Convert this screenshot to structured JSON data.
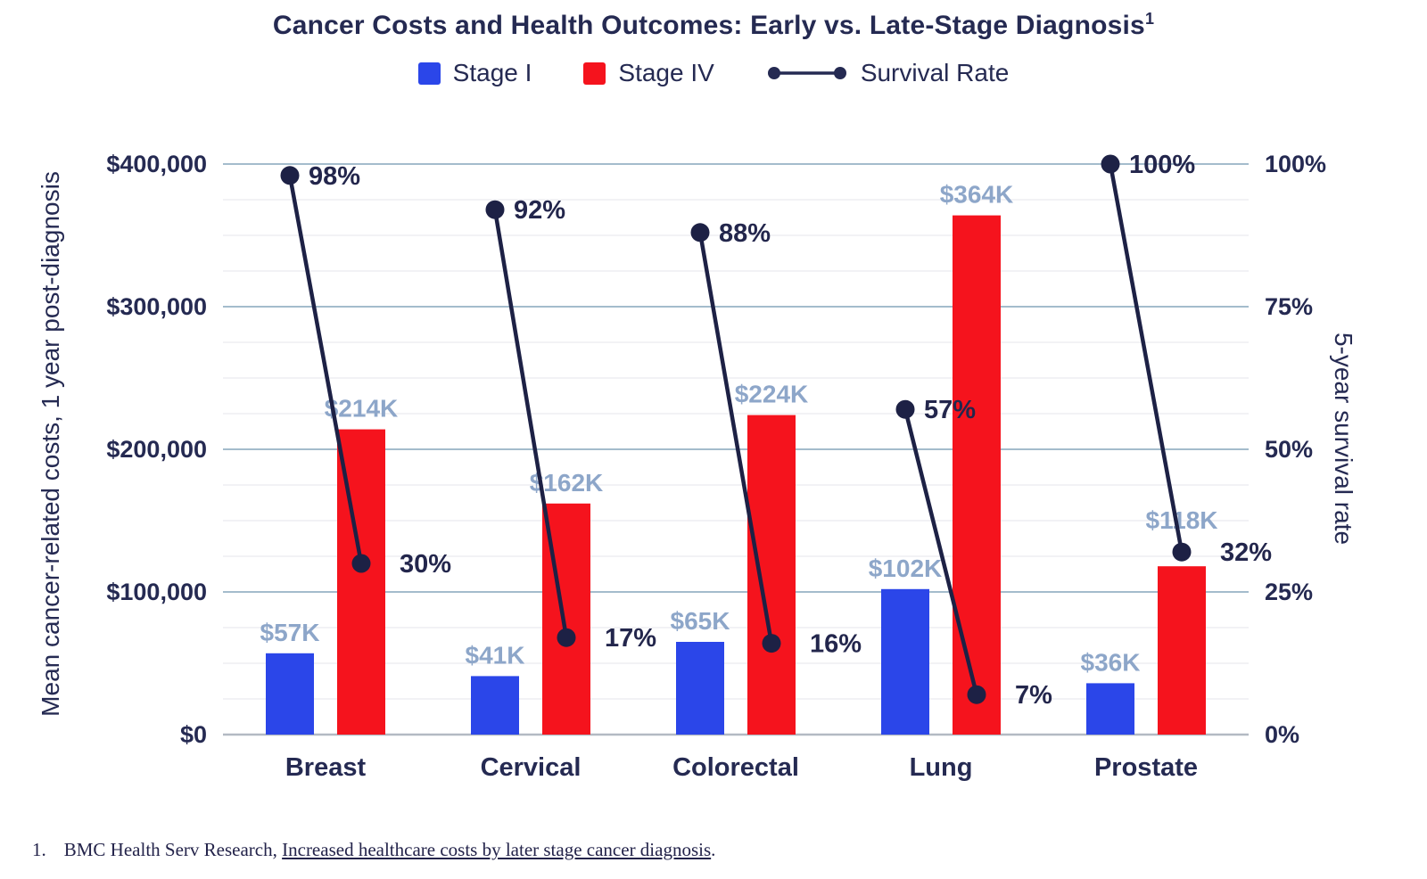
{
  "title": {
    "text": "Cancer Costs and Health Outcomes: Early vs. Late-Stage Diagnosis",
    "superscript": "1"
  },
  "legend": [
    {
      "label": "Stage I",
      "swatch": "blue-square",
      "color": "#2b46e9"
    },
    {
      "label": "Stage IV",
      "swatch": "red-square",
      "color": "#f5131d"
    },
    {
      "label": "Survival Rate",
      "swatch": "line-with-dots",
      "color": "#1d2145"
    }
  ],
  "chart_data": {
    "type": "bar+line",
    "categories": [
      "Breast",
      "Cervical",
      "Colorectal",
      "Lung",
      "Prostate"
    ],
    "series": [
      {
        "name": "Stage I",
        "type": "bar",
        "color": "#2b46e9",
        "values": [
          57000,
          41000,
          65000,
          102000,
          36000
        ],
        "labels": [
          "$57K",
          "$41K",
          "$65K",
          "$102K",
          "$36K"
        ]
      },
      {
        "name": "Stage IV",
        "type": "bar",
        "color": "#f5131d",
        "values": [
          214000,
          162000,
          224000,
          364000,
          118000
        ],
        "labels": [
          "$214K",
          "$162K",
          "$224K",
          "$364K",
          "$118K"
        ]
      },
      {
        "name": "Survival Rate",
        "type": "line",
        "color": "#1d2145",
        "early_values": [
          98,
          92,
          88,
          57,
          100
        ],
        "early_labels": [
          "98%",
          "92%",
          "88%",
          "57%",
          "100%"
        ],
        "late_values": [
          30,
          17,
          16,
          7,
          32
        ],
        "late_labels": [
          "30%",
          "17%",
          "16%",
          "7%",
          "32%"
        ]
      }
    ],
    "left_axis": {
      "title": "Mean cancer-related costs, 1 year post-diagnosis",
      "max": 400000,
      "ticks": [
        {
          "value": 0,
          "label": "$0"
        },
        {
          "value": 100000,
          "label": "$100,000"
        },
        {
          "value": 200000,
          "label": "$200,000"
        },
        {
          "value": 300000,
          "label": "$300,000"
        },
        {
          "value": 400000,
          "label": "$400,000"
        }
      ]
    },
    "right_axis": {
      "title": "5-year survival rate",
      "max": 100,
      "ticks": [
        {
          "value": 0,
          "label": "0%"
        },
        {
          "value": 25,
          "label": "25%"
        },
        {
          "value": 50,
          "label": "50%"
        },
        {
          "value": 75,
          "label": "75%"
        },
        {
          "value": 100,
          "label": "100%"
        }
      ]
    },
    "grid": {
      "minor_step": 25000,
      "major_step": 100000,
      "minor_color": "#edeef2",
      "major_color": "#a4bccc",
      "baseline_color": "#b3bac3"
    },
    "legend_position": "top"
  },
  "footnote": {
    "number": "1.",
    "prefix": "BMC Health Serv Research, ",
    "link": "Increased healthcare costs by later stage cancer diagnosis",
    "suffix": "."
  },
  "colors": {
    "stage_i_blue": "#2b46e9",
    "stage_iv_red": "#f5131d",
    "survival_navy": "#1d2145",
    "heading_navy": "#252a52",
    "value_label_blue": "#8da6c9",
    "major_grid": "#a4bccc",
    "minor_grid": "#edeef2",
    "baseline": "#b3bac3"
  }
}
